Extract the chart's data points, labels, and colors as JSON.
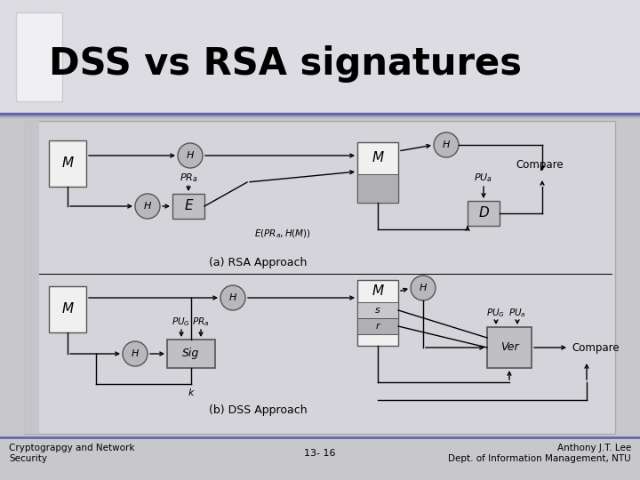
{
  "title": "DSS vs RSA signatures",
  "footer_left": "Cryptograpgy and Network\nSecurity",
  "footer_center": "13- 16",
  "footer_right": "Anthony J.T. Lee\nDept. of Information Management, NTU",
  "bg_marble": "#c8c8cc",
  "title_bg": "#e0e0e4",
  "inner_bg": "#d0d0d6",
  "panel_bg": "#d8d8dc",
  "box_fc": "#f0f0f0",
  "box_ec": "#555555",
  "circle_fc": "#b8b8bc",
  "dark_fc": "#a0a0a4",
  "sig_fc": "#c0c0c4",
  "separator_color": "#6666aa",
  "footer_sep": "#6666aa"
}
